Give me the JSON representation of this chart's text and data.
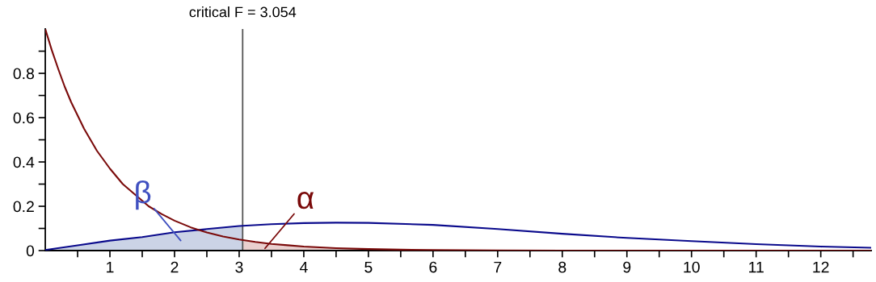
{
  "chart_data": {
    "type": "line",
    "series": [
      {
        "color": "#0a0a8c",
        "x": [
          0,
          0.5,
          1,
          1.5,
          2,
          2.5,
          3,
          3.5,
          4,
          4.5,
          5,
          6,
          7,
          8,
          9,
          10,
          11,
          12,
          12.78
        ],
        "values": [
          0.003,
          0.024,
          0.045,
          0.061,
          0.083,
          0.097,
          0.111,
          0.119,
          0.124,
          0.126,
          0.125,
          0.116,
          0.097,
          0.076,
          0.057,
          0.043,
          0.029,
          0.018,
          0.013
        ]
      },
      {
        "color": "#7a0a0a",
        "x": [
          0,
          0.1,
          0.2,
          0.3,
          0.4,
          0.5,
          0.6,
          0.7,
          0.8,
          0.9,
          1,
          1.2,
          1.4,
          1.6,
          1.8,
          2,
          2.25,
          2.5,
          2.75,
          3,
          3.25,
          3.5,
          3.75,
          4,
          4.5,
          5,
          5.5,
          6,
          7,
          8,
          10,
          12.78
        ],
        "values": [
          1.0,
          0.905,
          0.82,
          0.74,
          0.67,
          0.61,
          0.55,
          0.5,
          0.45,
          0.41,
          0.37,
          0.3,
          0.25,
          0.2,
          0.165,
          0.135,
          0.105,
          0.082,
          0.064,
          0.05,
          0.039,
          0.03,
          0.024,
          0.018,
          0.011,
          0.007,
          0.004,
          0.003,
          0.001,
          0,
          0,
          0
        ]
      },
      {
        "type": "area",
        "color": "#cbd3e6",
        "x": [
          0,
          0.5,
          1,
          1.5,
          2,
          2.5,
          3,
          3.054
        ],
        "values": [
          0.003,
          0.024,
          0.045,
          0.061,
          0.083,
          0.097,
          0.111,
          0.112
        ]
      },
      {
        "type": "area",
        "color": "#ead0cf",
        "x": [
          3.054,
          3.25,
          3.5,
          3.75,
          4,
          4.5,
          5,
          5.5,
          6,
          7,
          8,
          10,
          12.78
        ],
        "values": [
          0.047,
          0.039,
          0.03,
          0.024,
          0.018,
          0.011,
          0.007,
          0.004,
          0.003,
          0.001,
          0,
          0,
          0
        ]
      }
    ],
    "annotations": [
      "β",
      {
        "text": "α",
        "x": 3.4,
        "y": 0.01
      }
    ],
    "ref_lines": [
      {
        "axis": "x",
        "value": 3.054,
        "label": "critical F = 3.054",
        "color": "#555555"
      }
    ],
    "xlim": [
      0,
      12.78
    ],
    "ylim": [
      0,
      1.0
    ],
    "xticks": [
      {
        "value": 0.5,
        "label": null
      },
      1,
      {
        "value": 1.5,
        "label": null
      },
      2,
      {
        "value": 2.5,
        "label": null
      },
      3,
      {
        "value": 3.5,
        "label": null
      },
      4,
      {
        "value": 4.5,
        "label": null
      },
      5,
      {
        "value": 5.5,
        "label": null
      },
      6,
      {
        "value": 6.5,
        "label": null
      },
      7,
      {
        "value": 7.5,
        "label": null
      },
      8,
      {
        "value": 8.5,
        "label": null
      },
      9,
      {
        "value": 9.5,
        "label": null
      },
      10,
      {
        "value": 10.5,
        "label": null
      },
      11,
      {
        "value": 11.5,
        "label": null
      },
      12,
      {
        "value": 12.5,
        "label": null
      }
    ],
    "yticks": [
      0,
      {
        "value": 0.1,
        "label": null
      },
      0.2,
      {
        "value": 0.3,
        "label": null
      },
      0.4,
      {
        "value": 0.5,
        "label": null
      },
      0.6,
      {
        "value": 0.7,
        "label": null
      },
      0.8,
      {
        "value": 0.9,
        "label": null
      }
    ],
    "grid": false
  }
}
